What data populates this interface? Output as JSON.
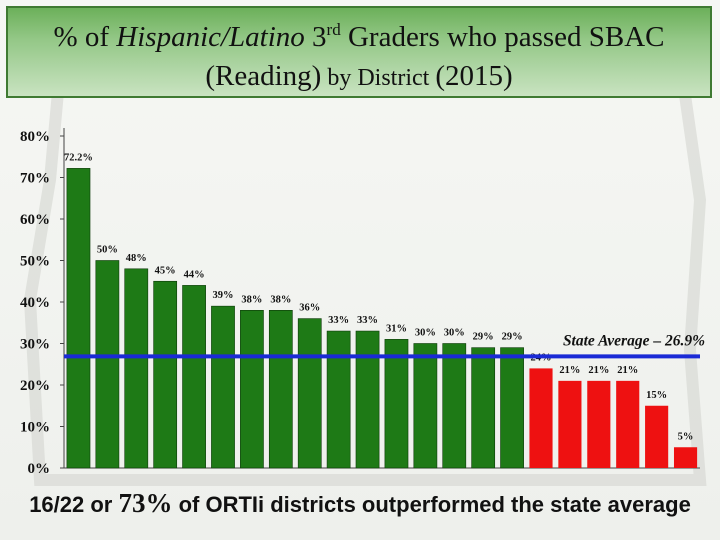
{
  "title": {
    "prefix": "% of ",
    "group": "Hispanic/Latino",
    "grade_num": "3",
    "grade_sup": "rd",
    "suffix": " Graders who passed SBAC",
    "line2_main": "(Reading)",
    "line2_small": " by District ",
    "line2_year": "(2015)"
  },
  "footer": {
    "part1": "16/22 or ",
    "big": "73%",
    "part2": " of ORTIi districts outperformed the state average"
  },
  "colors": {
    "above": "#1e7a16",
    "below": "#ee1111",
    "state_line": "#1a2ad6",
    "title_border": "#3f7a32"
  },
  "chart_data": {
    "type": "bar",
    "ylim": [
      0,
      80
    ],
    "yticks": [
      0,
      10,
      20,
      30,
      40,
      50,
      60,
      70,
      80
    ],
    "ytick_labels": [
      "0%",
      "10%",
      "20%",
      "30%",
      "40%",
      "50%",
      "60%",
      "70%",
      "80%"
    ],
    "values": [
      72.2,
      50,
      48,
      45,
      44,
      39,
      38,
      38,
      36,
      33,
      33,
      31,
      30,
      30,
      29,
      29,
      24,
      21,
      21,
      21,
      15,
      5
    ],
    "value_labels": [
      "72.2%",
      "50%",
      "48%",
      "45%",
      "44%",
      "39%",
      "38%",
      "38%",
      "36%",
      "33%",
      "33%",
      "31%",
      "30%",
      "30%",
      "29%",
      "29%",
      "24%",
      "21%",
      "21%",
      "21%",
      "15%",
      "5%"
    ],
    "above_average": [
      true,
      true,
      true,
      true,
      true,
      true,
      true,
      true,
      true,
      true,
      true,
      true,
      true,
      true,
      true,
      true,
      false,
      false,
      false,
      false,
      false,
      false
    ],
    "reference_line": {
      "value": 26.9,
      "label": "State Average – 26.9%"
    },
    "grid": false
  }
}
